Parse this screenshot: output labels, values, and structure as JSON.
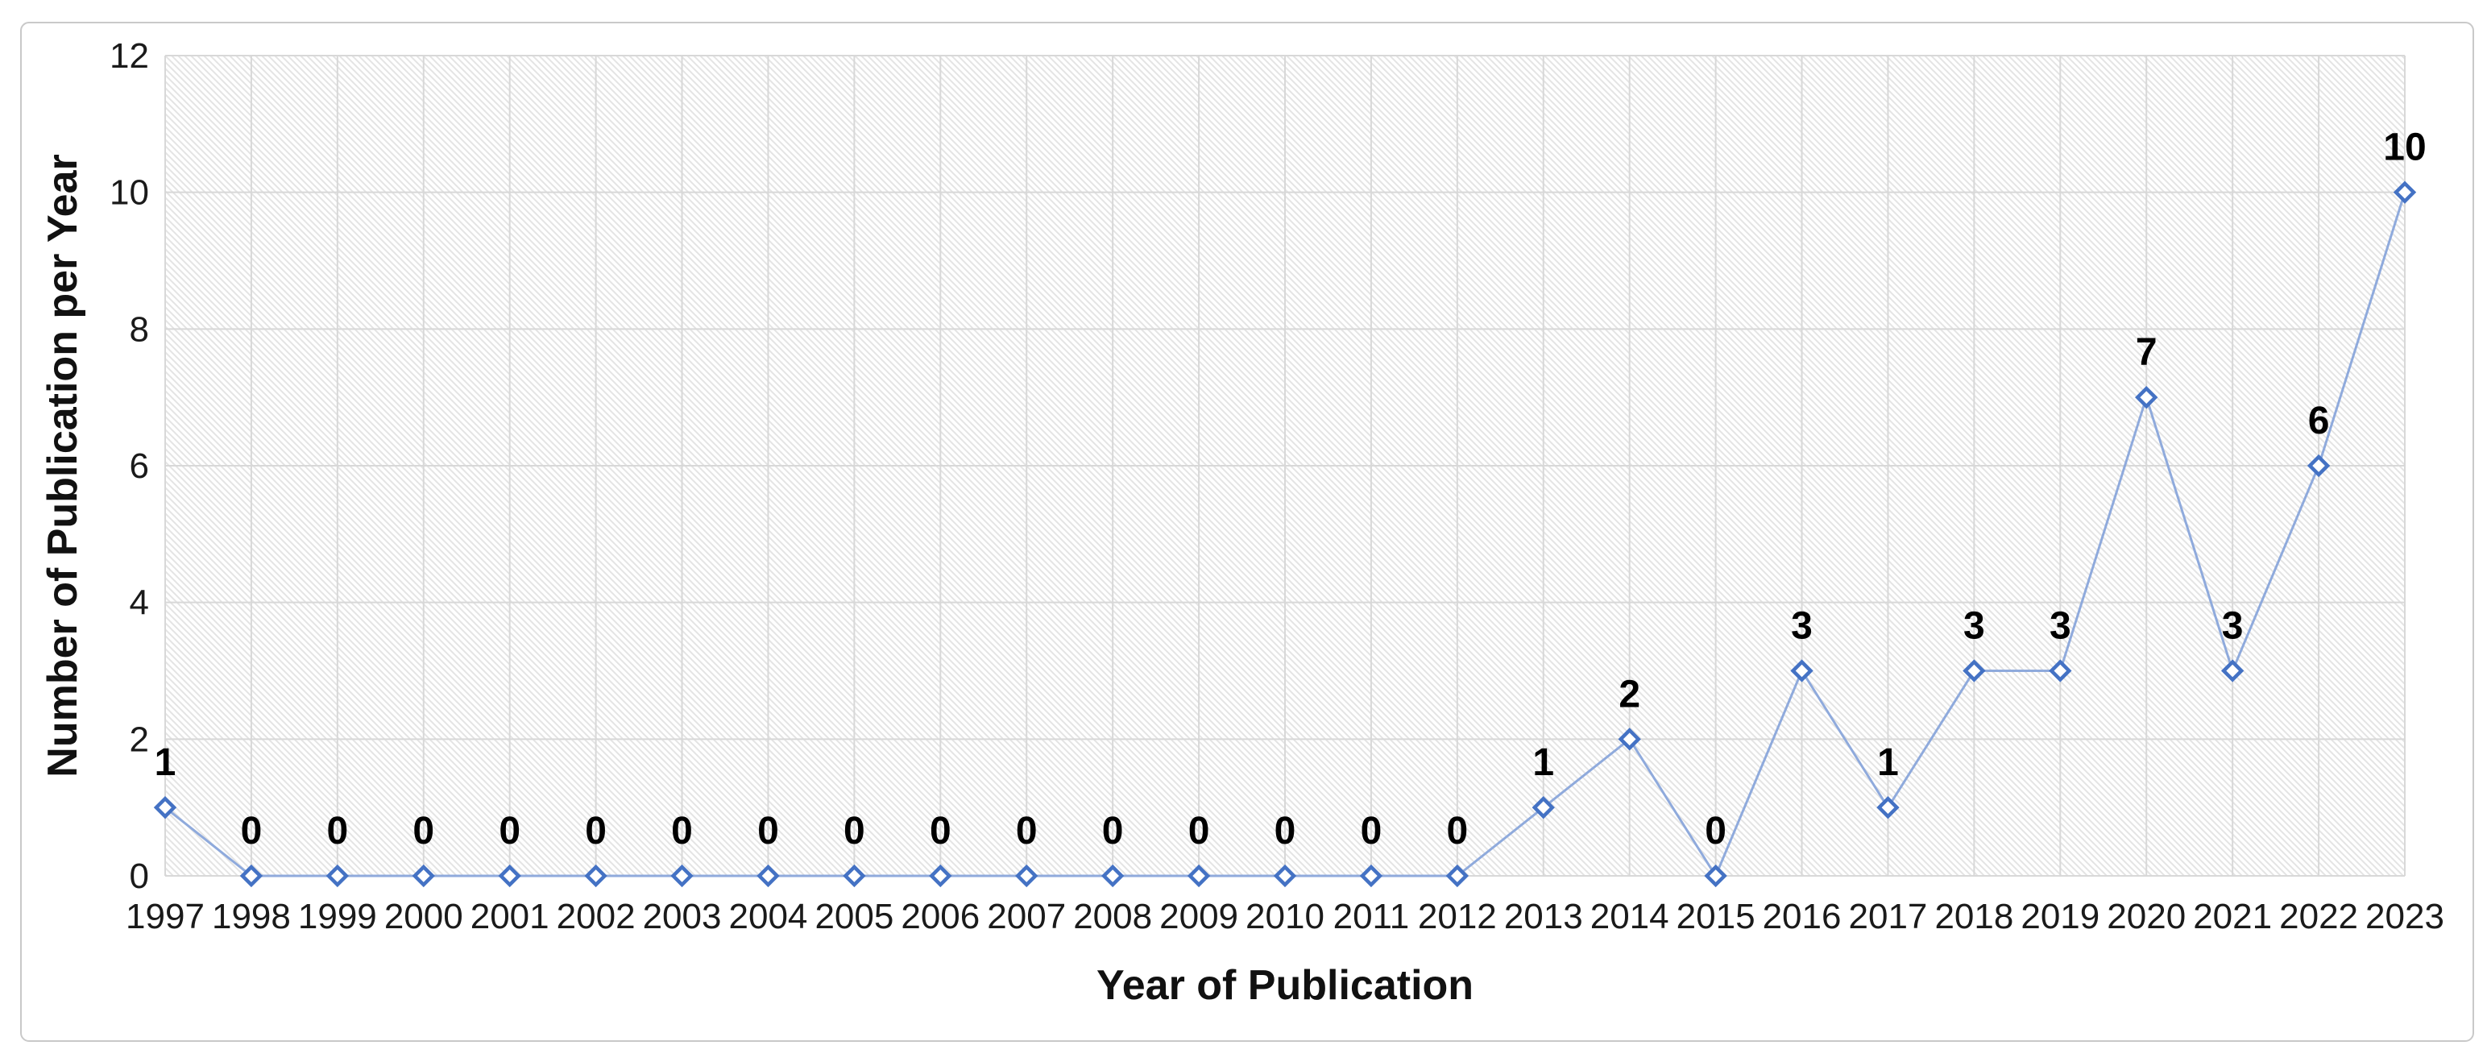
{
  "chart_data": {
    "type": "line",
    "title": "",
    "xlabel": "Year of Publication",
    "ylabel": "Number of Publication per Year",
    "categories": [
      "1997",
      "1998",
      "1999",
      "2000",
      "2001",
      "2002",
      "2003",
      "2004",
      "2005",
      "2006",
      "2007",
      "2008",
      "2009",
      "2010",
      "2011",
      "2012",
      "2013",
      "2014",
      "2015",
      "2016",
      "2017",
      "2018",
      "2019",
      "2020",
      "2021",
      "2022",
      "2023"
    ],
    "series": [
      {
        "name": "Number of Publication per Year",
        "values": [
          1,
          0,
          0,
          0,
          0,
          0,
          0,
          0,
          0,
          0,
          0,
          0,
          0,
          0,
          0,
          0,
          1,
          2,
          0,
          3,
          1,
          3,
          3,
          7,
          3,
          6,
          10
        ]
      }
    ],
    "data_labels": [
      1,
      0,
      0,
      0,
      0,
      0,
      0,
      0,
      0,
      0,
      0,
      0,
      0,
      0,
      0,
      0,
      1,
      2,
      0,
      3,
      1,
      3,
      3,
      7,
      3,
      6,
      10
    ],
    "ylim": [
      0,
      12
    ],
    "yticks": [
      0,
      2,
      4,
      6,
      8,
      10,
      12
    ],
    "grid": "both",
    "legend": "none",
    "marker": "open-diamond",
    "colors": {
      "line": "#8FAADC",
      "marker_stroke": "#4472C4",
      "marker_fill": "#FFFFFF",
      "gridline": "#D8D8D8",
      "hatch": "#E4E4E4",
      "text": "#000000",
      "frame_border": "#C9C9C9"
    }
  }
}
